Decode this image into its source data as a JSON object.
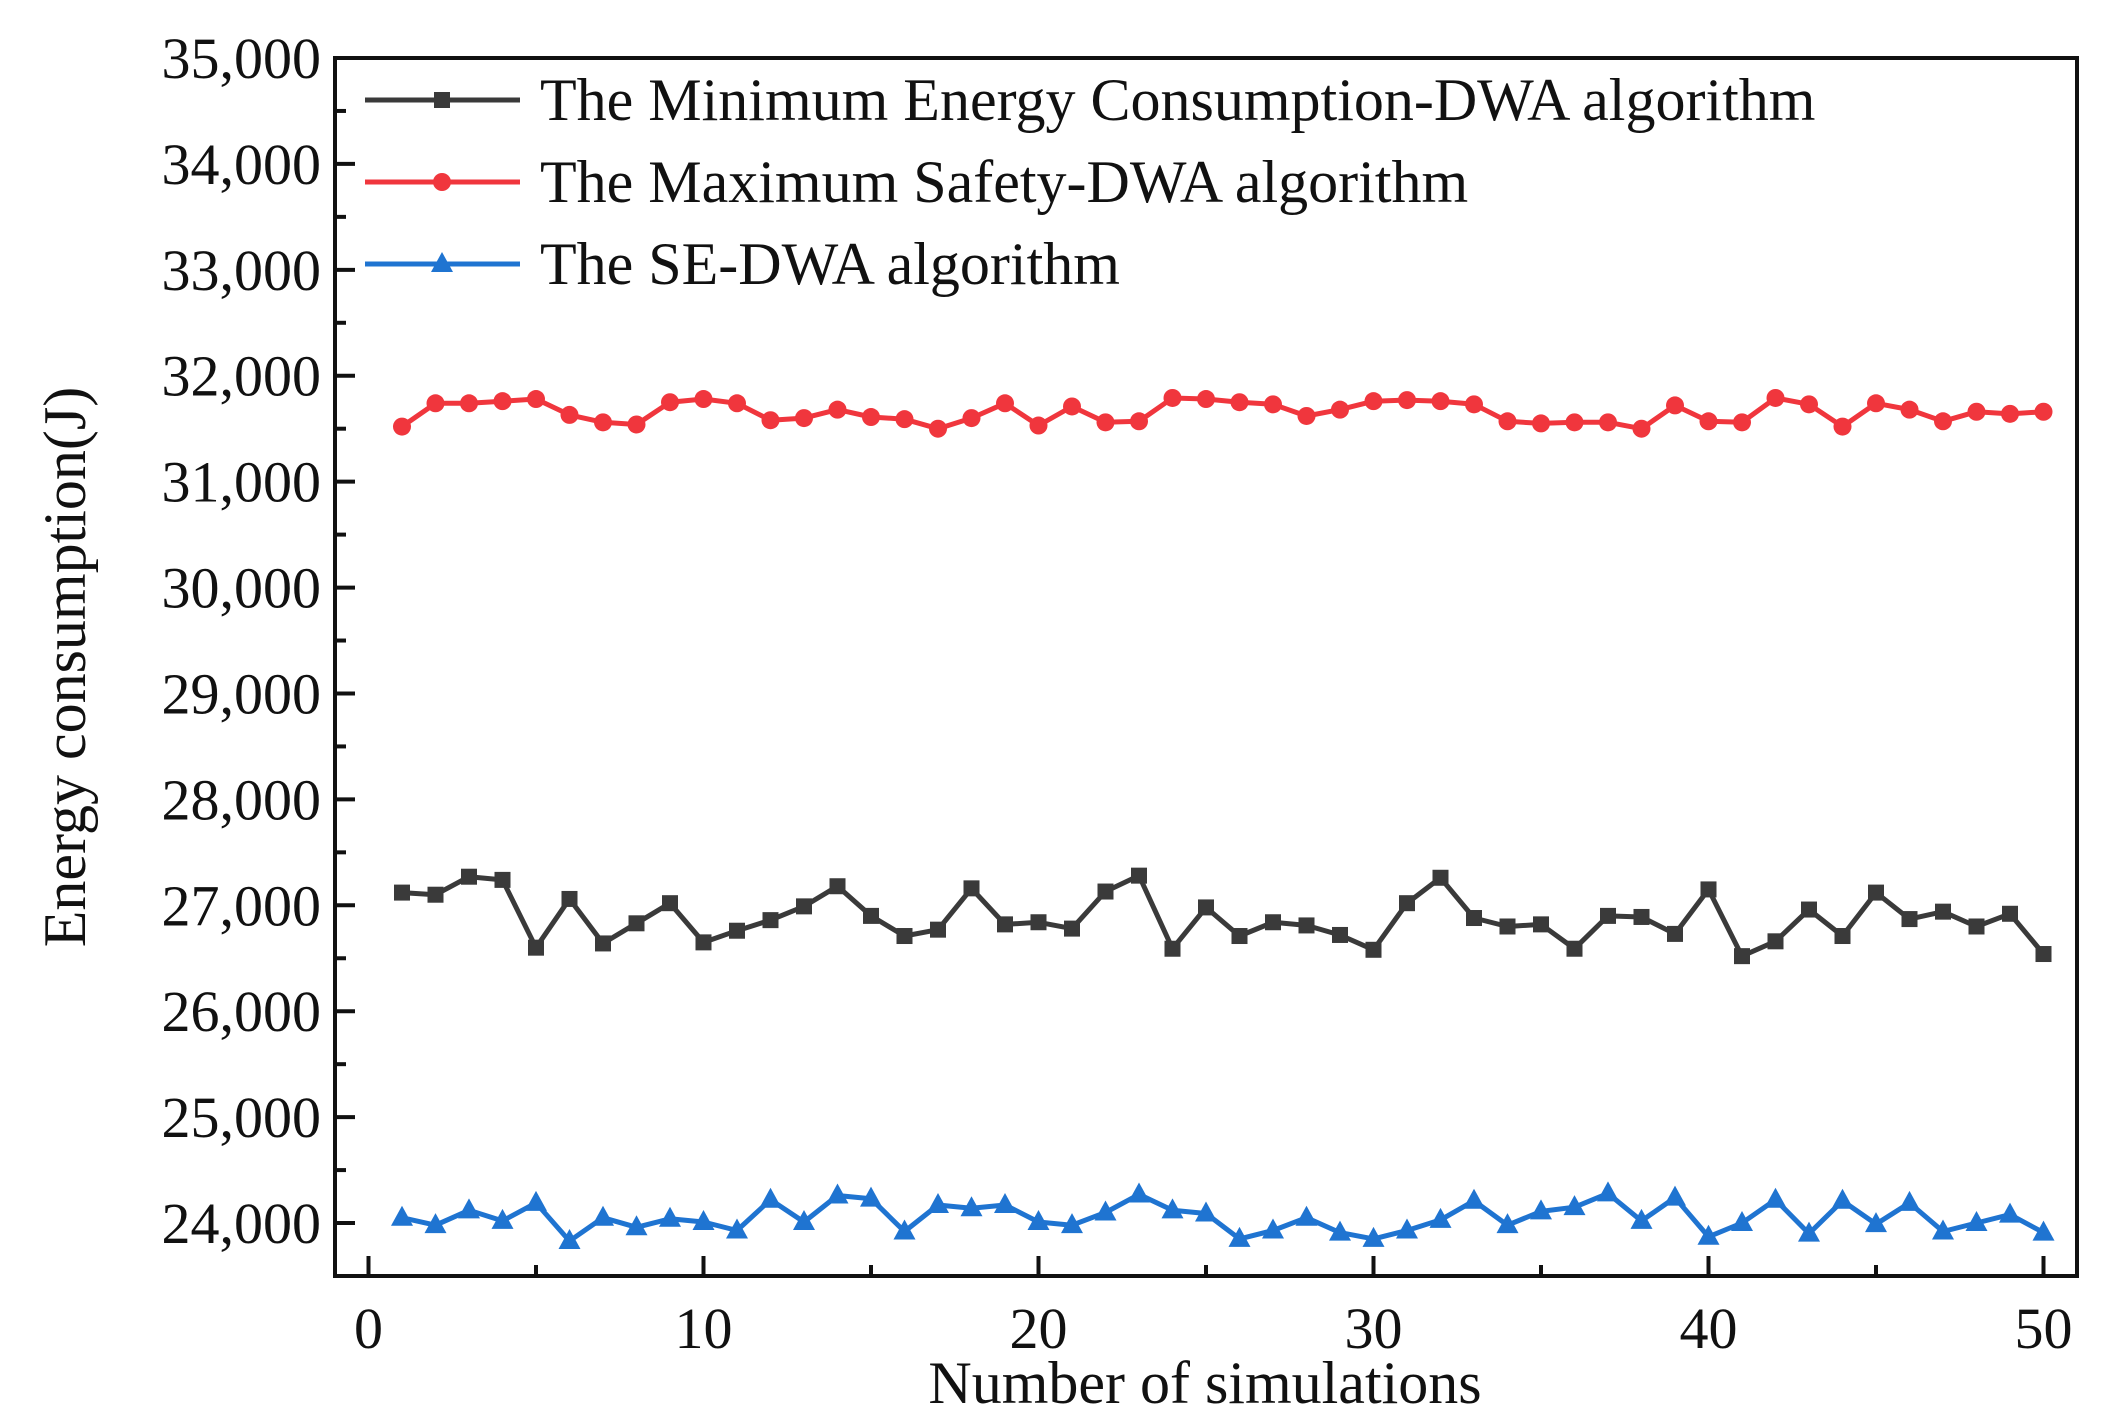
{
  "chart_data": {
    "type": "line",
    "title": "",
    "xlabel": "Number of simulations",
    "ylabel": "Energy consumption(J)",
    "xlim": [
      -1,
      51
    ],
    "ylim": [
      23500,
      35000
    ],
    "xticks": [
      0,
      10,
      20,
      30,
      40,
      50
    ],
    "xtick_labels": [
      "0",
      "10",
      "20",
      "30",
      "40",
      "50"
    ],
    "yticks": [
      24000,
      25000,
      26000,
      27000,
      28000,
      29000,
      30000,
      31000,
      32000,
      33000,
      34000,
      35000
    ],
    "ytick_labels": [
      "24,000",
      "25,000",
      "26,000",
      "27,000",
      "28,000",
      "29,000",
      "30,000",
      "31,000",
      "32,000",
      "33,000",
      "34,000",
      "35,000"
    ],
    "grid": false,
    "legend_position": "top-left",
    "x": [
      1,
      2,
      3,
      4,
      5,
      6,
      7,
      8,
      9,
      10,
      11,
      12,
      13,
      14,
      15,
      16,
      17,
      18,
      19,
      20,
      21,
      22,
      23,
      24,
      25,
      26,
      27,
      28,
      29,
      30,
      31,
      32,
      33,
      34,
      35,
      36,
      37,
      38,
      39,
      40,
      41,
      42,
      43,
      44,
      45,
      46,
      47,
      48,
      49,
      50
    ],
    "series": [
      {
        "name": "The Minimum Energy Consumption-DWA algorithm",
        "color": "#3a3a3a",
        "marker": "square",
        "values": [
          27120,
          27100,
          27270,
          27240,
          26600,
          27060,
          26640,
          26830,
          27020,
          26650,
          26760,
          26860,
          26990,
          27180,
          26900,
          26710,
          26770,
          27160,
          26820,
          26840,
          26780,
          27130,
          27280,
          26590,
          26980,
          26710,
          26840,
          26810,
          26720,
          26580,
          27020,
          27260,
          26880,
          26800,
          26820,
          26590,
          26900,
          26890,
          26730,
          27150,
          26520,
          26660,
          26960,
          26710,
          27120,
          26870,
          26940,
          26800,
          26920,
          26540
        ]
      },
      {
        "name": "The Maximum Safety-DWA algorithm",
        "color": "#f0363d",
        "marker": "circle",
        "values": [
          31520,
          31740,
          31740,
          31760,
          31780,
          31630,
          31560,
          31540,
          31750,
          31780,
          31740,
          31580,
          31600,
          31680,
          31610,
          31590,
          31500,
          31600,
          31740,
          31530,
          31710,
          31560,
          31570,
          31790,
          31780,
          31750,
          31730,
          31620,
          31680,
          31760,
          31770,
          31760,
          31730,
          31570,
          31550,
          31560,
          31560,
          31500,
          31720,
          31570,
          31560,
          31790,
          31730,
          31520,
          31740,
          31680,
          31570,
          31660,
          31640,
          31660
        ]
      },
      {
        "name": "The SE-DWA algorithm",
        "color": "#1f74d1",
        "marker": "triangle",
        "values": [
          24050,
          23980,
          24120,
          24020,
          24190,
          23830,
          24050,
          23960,
          24040,
          24010,
          23930,
          24220,
          24010,
          24260,
          24230,
          23920,
          24170,
          24140,
          24170,
          24010,
          23980,
          24100,
          24270,
          24120,
          24090,
          23850,
          23930,
          24050,
          23910,
          23850,
          23930,
          24030,
          24210,
          23980,
          24110,
          24150,
          24280,
          24020,
          24240,
          23870,
          24000,
          24220,
          23900,
          24210,
          23990,
          24190,
          23920,
          24000,
          24080,
          23910
        ]
      }
    ]
  }
}
